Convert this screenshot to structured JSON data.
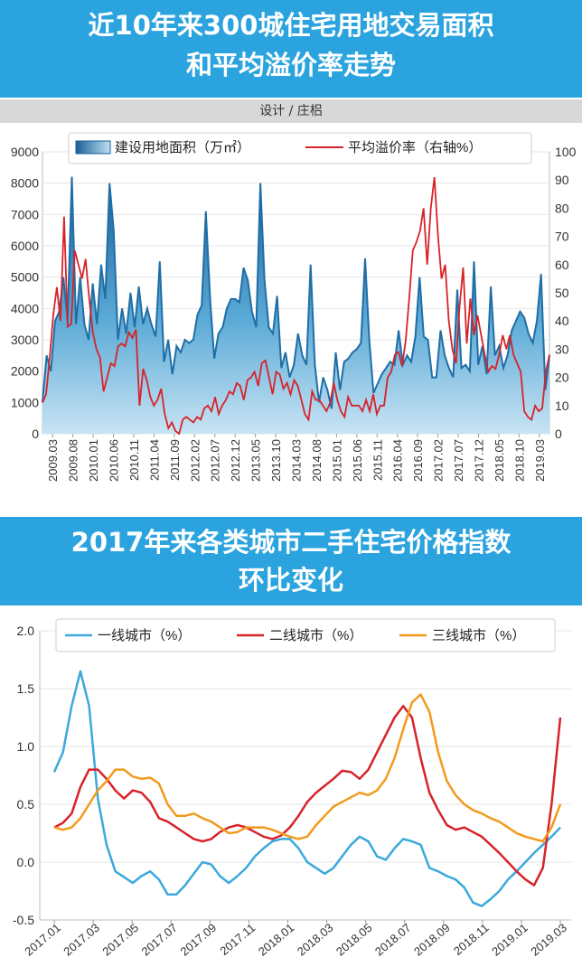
{
  "chart1": {
    "title_line1": "近10年来300城住宅用地交易面积",
    "title_line2": "和平均溢价率走势",
    "credit": "设计 / 庄梠",
    "chart_data": {
      "type": "area",
      "legend": {
        "area": "建设用地面积（万㎡）",
        "line": "平均溢价率（右轴%）",
        "placement": "top-center"
      },
      "y_left_ticks": [
        "0",
        "1000",
        "2000",
        "3000",
        "4000",
        "5000",
        "6000",
        "7000",
        "8000",
        "9000"
      ],
      "y_right_ticks": [
        "0",
        "10",
        "20",
        "30",
        "40",
        "50",
        "60",
        "70",
        "80",
        "90",
        "100"
      ],
      "ylim_left": [
        0,
        9000
      ],
      "ylim_right": [
        0,
        100
      ],
      "x_tick_labels": [
        "2009.03",
        "2009.08",
        "2010.01",
        "2010.06",
        "2010.11",
        "2011.04",
        "2011.09",
        "2012.02",
        "2012.07",
        "2012.12",
        "2013.05",
        "2013.10",
        "2014.03",
        "2014.08",
        "2015.01",
        "2015.06",
        "2015.11",
        "2016.04",
        "2016.09",
        "2017.02",
        "2017.07",
        "2017.12",
        "2018.05",
        "2018.10",
        "2019.03"
      ],
      "x_start": "2009.03",
      "x_end": "2019.03",
      "series": [
        {
          "name": "建设用地面积（万㎡）",
          "color": "#1f6ea6",
          "axis": "left",
          "values": [
            1000,
            2500,
            2000,
            3600,
            3900,
            5000,
            3600,
            8200,
            3500,
            5000,
            3500,
            3000,
            4800,
            3500,
            5400,
            4300,
            8000,
            6500,
            3000,
            4000,
            3200,
            4500,
            3400,
            4700,
            3500,
            4000,
            3500,
            3100,
            5500,
            2300,
            3000,
            1900,
            2800,
            2600,
            3000,
            2900,
            3000,
            3800,
            4100,
            7100,
            4300,
            2400,
            3200,
            3400,
            4000,
            4300,
            4300,
            4200,
            5300,
            4900,
            3900,
            3400,
            8000,
            4900,
            3400,
            3200,
            4400,
            2100,
            2600,
            1800,
            2200,
            3200,
            2500,
            2200,
            5400,
            2200,
            1000,
            1800,
            1400,
            800,
            2600,
            1400,
            2300,
            2400,
            2600,
            2700,
            2900,
            5600,
            3000,
            1300,
            1600,
            1900,
            2100,
            2300,
            2200,
            3300,
            2200,
            2500,
            2300,
            3100,
            5000,
            3100,
            3000,
            1800,
            1800,
            3300,
            2500,
            2100,
            1800,
            4600,
            2100,
            2200,
            2000,
            5500,
            2200,
            2800,
            1900,
            4700,
            2500,
            2800,
            2100,
            2500,
            3300,
            3600,
            3900,
            3700,
            3200,
            2900,
            3600,
            5100,
            1400,
            2500
          ]
        },
        {
          "name": "平均溢价率（右轴%）",
          "color": "#d7232a",
          "axis": "right",
          "values": [
            11,
            14,
            27,
            42,
            52,
            40,
            77,
            38,
            39,
            65,
            60,
            55,
            62,
            48,
            36,
            30,
            27,
            15,
            20,
            25,
            24,
            31,
            32,
            31,
            36,
            34,
            37,
            10,
            23,
            19,
            13,
            10,
            12,
            16,
            7,
            2,
            4,
            1,
            0,
            5,
            6,
            5,
            4,
            6,
            5,
            9,
            10,
            8,
            13,
            7,
            10,
            12,
            15,
            14,
            18,
            17,
            12,
            19,
            20,
            22,
            17,
            25,
            26,
            20,
            14,
            22,
            21,
            16,
            18,
            14,
            19,
            17,
            12,
            7,
            5,
            15,
            12,
            12,
            10,
            8,
            11,
            18,
            12,
            8,
            6,
            13,
            10,
            10,
            10,
            8,
            12,
            8,
            14,
            7,
            10,
            10,
            20,
            22,
            28,
            29,
            24,
            33,
            48,
            65,
            68,
            72,
            80,
            60,
            80,
            91,
            70,
            55,
            60,
            40,
            30,
            25,
            45,
            59,
            32,
            48,
            35,
            42,
            35,
            28,
            22,
            24,
            23,
            28,
            35,
            30,
            35,
            28,
            25,
            22,
            8,
            6,
            5,
            10,
            8,
            9,
            22,
            28
          ]
        }
      ]
    }
  },
  "chart2": {
    "title_line1": "2017年来各类城市二手住宅价格指数",
    "title_line2": "环比变化",
    "chart_data": {
      "type": "line",
      "legend_placement": "top",
      "y_ticks": [
        "-0.5",
        "0.0",
        "0.5",
        "1.0",
        "1.5",
        "2.0"
      ],
      "ylim": [
        -0.5,
        2.0
      ],
      "x_tick_labels": [
        "2017.01",
        "2017.03",
        "2017.05",
        "2017.07",
        "2017.09",
        "2017.11",
        "2018.01",
        "2018.03",
        "2018.05",
        "2018.07",
        "2018.09",
        "2018.11",
        "2019.01",
        "2019.03"
      ],
      "x_start": "2017.01",
      "x_end": "2019.03",
      "series": [
        {
          "name": "一线城市（%）",
          "color": "#3ba9dc",
          "values": [
            0.78,
            0.95,
            1.35,
            1.65,
            1.35,
            0.55,
            0.15,
            -0.08,
            -0.13,
            -0.18,
            -0.12,
            -0.08,
            -0.15,
            -0.28,
            -0.28,
            -0.2,
            -0.1,
            0.0,
            -0.02,
            -0.12,
            -0.18,
            -0.12,
            -0.05,
            0.05,
            0.12,
            0.18,
            0.2,
            0.2,
            0.12,
            0.0,
            -0.05,
            -0.1,
            -0.05,
            0.05,
            0.15,
            0.22,
            0.18,
            0.05,
            0.02,
            0.12,
            0.2,
            0.18,
            0.15,
            -0.05,
            -0.08,
            -0.12,
            -0.15,
            -0.22,
            -0.35,
            -0.38,
            -0.32,
            -0.25,
            -0.15,
            -0.08,
            0.0,
            0.08,
            0.15,
            0.22,
            0.3
          ]
        },
        {
          "name": "二线城市（%）",
          "color": "#d7232a",
          "values": [
            0.3,
            0.34,
            0.42,
            0.65,
            0.8,
            0.8,
            0.72,
            0.62,
            0.55,
            0.62,
            0.6,
            0.52,
            0.38,
            0.35,
            0.3,
            0.25,
            0.2,
            0.18,
            0.2,
            0.26,
            0.3,
            0.32,
            0.3,
            0.26,
            0.22,
            0.2,
            0.23,
            0.3,
            0.4,
            0.52,
            0.6,
            0.66,
            0.72,
            0.79,
            0.78,
            0.72,
            0.8,
            0.95,
            1.1,
            1.25,
            1.35,
            1.25,
            0.9,
            0.6,
            0.45,
            0.32,
            0.28,
            0.3,
            0.26,
            0.22,
            0.15,
            0.08,
            0.0,
            -0.08,
            -0.15,
            -0.2,
            -0.05,
            0.5,
            1.25
          ]
        },
        {
          "name": "三线城市（%）",
          "color": "#f39a1c",
          "values": [
            0.3,
            0.28,
            0.3,
            0.38,
            0.5,
            0.62,
            0.7,
            0.8,
            0.8,
            0.74,
            0.72,
            0.73,
            0.68,
            0.5,
            0.4,
            0.4,
            0.42,
            0.38,
            0.35,
            0.3,
            0.25,
            0.26,
            0.3,
            0.3,
            0.3,
            0.28,
            0.25,
            0.22,
            0.2,
            0.22,
            0.32,
            0.4,
            0.48,
            0.52,
            0.56,
            0.6,
            0.58,
            0.62,
            0.72,
            0.9,
            1.15,
            1.38,
            1.45,
            1.3,
            0.95,
            0.7,
            0.58,
            0.5,
            0.45,
            0.42,
            0.38,
            0.35,
            0.3,
            0.25,
            0.22,
            0.2,
            0.18,
            0.3,
            0.5
          ]
        }
      ]
    }
  }
}
